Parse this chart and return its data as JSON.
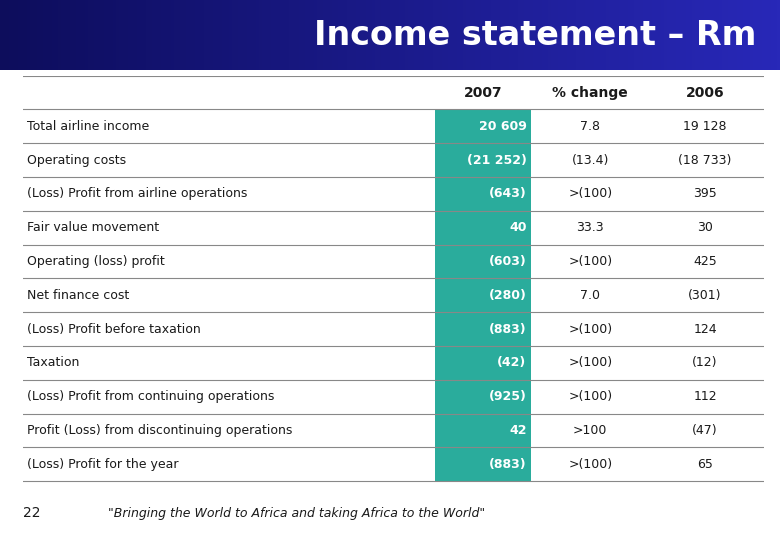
{
  "title": "Income statement – Rm",
  "title_text_color": "#ffffff",
  "header_row": [
    "",
    "2007",
    "% change",
    "2006"
  ],
  "rows": [
    [
      "Total airline income",
      "20 609",
      "7.8",
      "19 128"
    ],
    [
      "Operating costs",
      "(21 252)",
      "(13.4)",
      "(18 733)"
    ],
    [
      "(Loss) Profit from airline operations",
      "(643)",
      ">(100)",
      "395"
    ],
    [
      "Fair value movement",
      "40",
      "33.3",
      "30"
    ],
    [
      "Operating (loss) profit",
      "(603)",
      ">(100)",
      "425"
    ],
    [
      "Net finance cost",
      "(280)",
      "7.0",
      "(301)"
    ],
    [
      "(Loss) Profit before taxation",
      "(883)",
      ">(100)",
      "124"
    ],
    [
      "Taxation",
      "(42)",
      ">(100)",
      "(12)"
    ],
    [
      "(Loss) Profit from continuing operations",
      "(925)",
      ">(100)",
      "112"
    ],
    [
      "Profit (Loss) from discontinuing operations",
      "42",
      ">100",
      "(47)"
    ],
    [
      "(Loss) Profit for the year",
      "(883)",
      ">(100)",
      "65"
    ]
  ],
  "teal_color": "#2aac9c",
  "teal_text_color": "#ffffff",
  "body_text_color": "#1a1a1a",
  "header_text_color": "#1a1a1a",
  "row_line_color": "#888888",
  "footer_text": "\"Bringing the World to Africa and taking Africa to the World\"",
  "footer_number": "22",
  "bg_color": "#ffffff",
  "title_grad_left": "#0d0d5c",
  "title_grad_right": "#2828b8"
}
